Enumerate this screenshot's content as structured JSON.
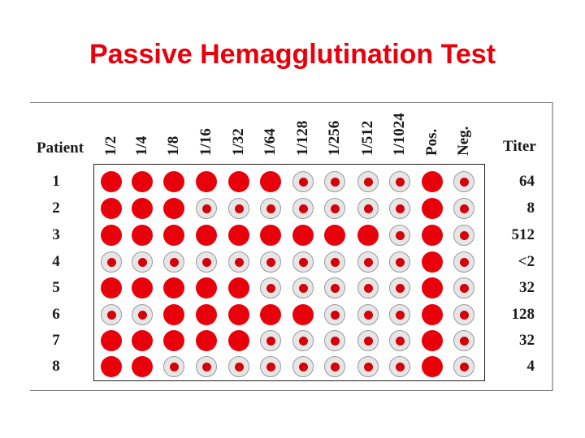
{
  "title": "Passive Hemagglutination Test",
  "header": {
    "patient_label": "Patient",
    "titer_label": "Titer",
    "columns": [
      "1/2",
      "1/4",
      "1/8",
      "1/16",
      "1/32",
      "1/64",
      "1/128",
      "1/256",
      "1/512",
      "1/1024",
      "Pos.",
      "Neg."
    ]
  },
  "rows": [
    {
      "patient": "1",
      "titer": "64",
      "wells": [
        "agglutination",
        "agglutination",
        "agglutination",
        "agglutination",
        "agglutination",
        "agglutination",
        "button",
        "button",
        "button",
        "button",
        "agglutination",
        "button"
      ]
    },
    {
      "patient": "2",
      "titer": "8",
      "wells": [
        "agglutination",
        "agglutination",
        "agglutination",
        "button",
        "button",
        "button",
        "button",
        "button",
        "button",
        "button",
        "agglutination",
        "button"
      ]
    },
    {
      "patient": "3",
      "titer": "512",
      "wells": [
        "agglutination",
        "agglutination",
        "agglutination",
        "agglutination",
        "agglutination",
        "agglutination",
        "agglutination",
        "agglutination",
        "agglutination",
        "button",
        "agglutination",
        "button"
      ]
    },
    {
      "patient": "4",
      "titer": "<2",
      "wells": [
        "button",
        "button",
        "button",
        "button",
        "button",
        "button",
        "button",
        "button",
        "button",
        "button",
        "agglutination",
        "button"
      ]
    },
    {
      "patient": "5",
      "titer": "32",
      "wells": [
        "agglutination",
        "agglutination",
        "agglutination",
        "agglutination",
        "agglutination",
        "button",
        "button",
        "button",
        "button",
        "button",
        "agglutination",
        "button"
      ]
    },
    {
      "patient": "6",
      "titer": "128",
      "wells": [
        "button",
        "button",
        "agglutination",
        "agglutination",
        "agglutination",
        "agglutination",
        "agglutination",
        "button",
        "button",
        "button",
        "agglutination",
        "button"
      ]
    },
    {
      "patient": "7",
      "titer": "32",
      "wells": [
        "agglutination",
        "agglutination",
        "agglutination",
        "agglutination",
        "agglutination",
        "button",
        "button",
        "button",
        "button",
        "button",
        "agglutination",
        "button"
      ]
    },
    {
      "patient": "8",
      "titer": "4",
      "wells": [
        "agglutination",
        "agglutination",
        "button",
        "button",
        "button",
        "button",
        "button",
        "button",
        "button",
        "button",
        "agglutination",
        "button"
      ]
    }
  ],
  "colors": {
    "title": "#e8000b",
    "agglutination": "#e8000b",
    "button_dot": "#d4000a",
    "button_ring": "#e6e6e6"
  }
}
